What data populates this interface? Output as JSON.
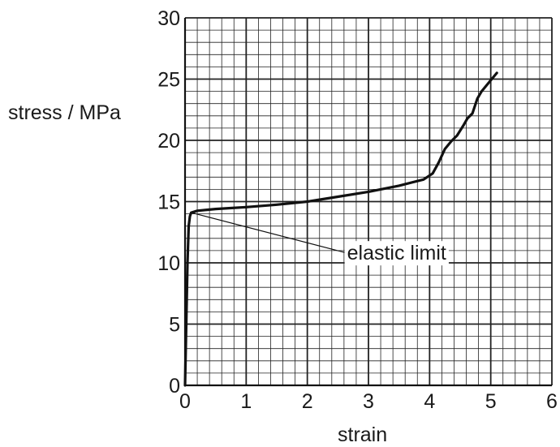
{
  "chart_data": {
    "type": "line",
    "title": "",
    "xlabel": "strain",
    "ylabel": "stress / MPa",
    "xlim": [
      0,
      6
    ],
    "ylim": [
      0,
      30
    ],
    "x_ticks": [
      "0",
      "1",
      "2",
      "3",
      "4",
      "5",
      "6"
    ],
    "y_ticks": [
      "0",
      "5",
      "10",
      "15",
      "20",
      "25",
      "30"
    ],
    "grid": true,
    "major_grid_step_x": 1,
    "major_grid_step_y": 5,
    "minor_grid_divisions": 5,
    "series": [
      {
        "x": [
          0.0,
          0.02,
          0.04,
          0.06,
          0.08,
          0.1,
          0.2,
          0.5,
          1.0,
          1.5,
          2.0,
          2.5,
          3.0,
          3.5,
          3.9,
          4.05,
          4.15,
          4.25,
          4.35,
          4.45,
          4.55,
          4.62,
          4.7,
          4.78,
          4.85,
          4.95,
          5.1
        ],
        "y": [
          0.0,
          5.0,
          10.0,
          13.0,
          13.8,
          14.1,
          14.25,
          14.4,
          14.55,
          14.75,
          15.0,
          15.4,
          15.8,
          16.3,
          16.8,
          17.3,
          18.2,
          19.3,
          19.9,
          20.4,
          21.2,
          21.8,
          22.2,
          23.4,
          24.0,
          24.6,
          25.5
        ],
        "color": "#111111"
      }
    ],
    "annotations": [
      {
        "text": "elastic limit",
        "x": 0.1,
        "y": 14.1,
        "label_x": 2.65,
        "label_y": 10.85
      }
    ]
  }
}
